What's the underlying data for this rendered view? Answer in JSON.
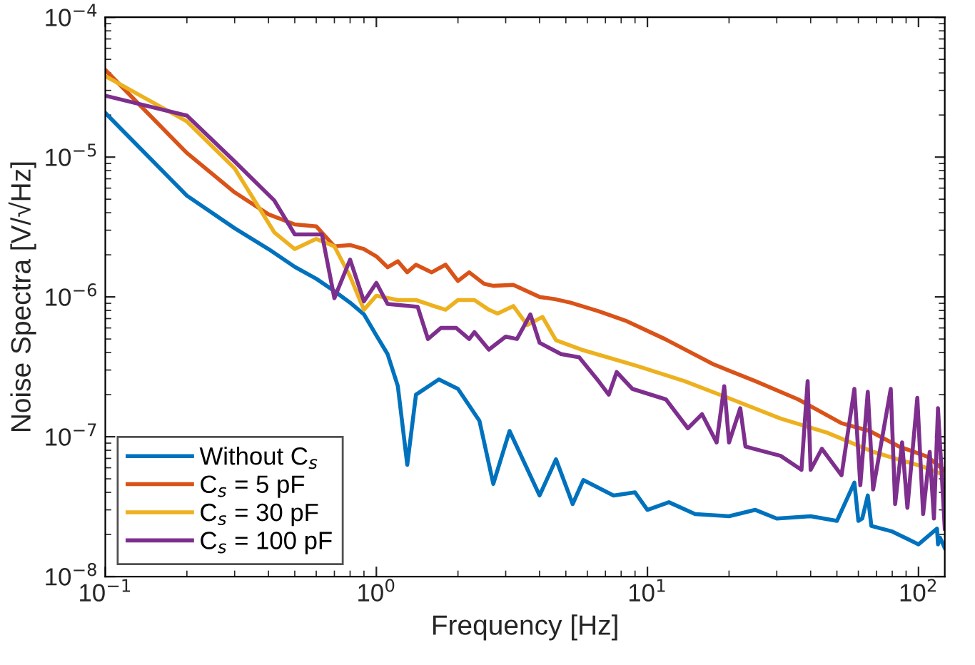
{
  "chart_data": {
    "type": "line",
    "xlabel": "Frequency [Hz]",
    "ylabel": "Noise Spectra [V/√Hz]",
    "log": "xy",
    "grid": false,
    "legend": "bottom left",
    "marker": "none",
    "line_style": "solid",
    "xlim": [
      0.1,
      125
    ],
    "ylim": [
      1e-08,
      0.0001
    ],
    "xticks": [
      {
        "value": 0.1,
        "label": "10$^{−1}$"
      },
      {
        "value": 1,
        "label": "10$^{0}$"
      },
      {
        "value": 10,
        "label": "10$^{1}$"
      },
      {
        "value": 100,
        "label": "10$^{2}$"
      }
    ],
    "yticks": [
      {
        "value": 1e-08,
        "label": "10$^{−8}$"
      },
      {
        "value": 1e-07,
        "label": "10$^{−7}$"
      },
      {
        "value": 1e-06,
        "label": "10$^{−6}$"
      },
      {
        "value": 1e-05,
        "label": "10$^{−5}$"
      },
      {
        "value": 0.0001,
        "label": "10$^{−4}$"
      }
    ],
    "series": [
      {
        "name": "Without C$_{s}$",
        "color": "#0072bd",
        "x": [
          0.1,
          0.2,
          0.3,
          0.4,
          0.5,
          0.6,
          0.7,
          0.8,
          0.9,
          1.0,
          1.1,
          1.2,
          1.3,
          1.4,
          1.7,
          2.0,
          2.4,
          2.7,
          3.1,
          4.0,
          4.6,
          5.3,
          5.8,
          7.5,
          9,
          10,
          12,
          15,
          20,
          25,
          30,
          40,
          50,
          58,
          60,
          62,
          65,
          67,
          80,
          100,
          117,
          118,
          120,
          125
        ],
        "values": [
          2.07e-05,
          5.3e-06,
          3.1e-06,
          2.2e-06,
          1.64e-06,
          1.35e-06,
          1.1e-06,
          9.1e-07,
          7.5e-07,
          5.3e-07,
          3.9e-07,
          2.3e-07,
          6.3e-08,
          2e-07,
          2.57e-07,
          2.2e-07,
          1.3e-07,
          4.6e-08,
          1.1e-07,
          3.8e-08,
          6.9e-08,
          3.3e-08,
          4.9e-08,
          3.8e-08,
          4e-08,
          3e-08,
          3.4e-08,
          2.8e-08,
          2.7e-08,
          3e-08,
          2.6e-08,
          2.7e-08,
          2.5e-08,
          4.7e-08,
          2.5e-08,
          2.6e-08,
          3.8e-08,
          2.3e-08,
          2.1e-08,
          1.7e-08,
          2.2e-08,
          1.7e-08,
          1.9e-08,
          1.6e-08
        ]
      },
      {
        "name": "C$_{s}$ = 5 pF",
        "color": "#d95319",
        "x": [
          0.1,
          0.2,
          0.3,
          0.4,
          0.5,
          0.6,
          0.7,
          0.8,
          0.9,
          1.0,
          1.1,
          1.2,
          1.3,
          1.4,
          1.6,
          1.8,
          2.0,
          2.2,
          2.5,
          2.7,
          3.2,
          4.0,
          4.6,
          5.2,
          6.6,
          8.4,
          11.6,
          17.5,
          25,
          36,
          52,
          66,
          85,
          108,
          125
        ],
        "values": [
          4.2e-05,
          1.07e-05,
          5.6e-06,
          3.9e-06,
          3.3e-06,
          3.2e-06,
          2.3e-06,
          2.35e-06,
          2.2e-06,
          1.95e-06,
          1.63e-06,
          1.8e-06,
          1.5e-06,
          1.7e-06,
          1.5e-06,
          1.7e-06,
          1.3e-06,
          1.5e-06,
          1.24e-06,
          1.2e-06,
          1.22e-06,
          1e-06,
          9.6e-07,
          9.1e-07,
          7.9e-07,
          6.7e-07,
          5e-07,
          3.3e-07,
          2.5e-07,
          1.85e-07,
          1.25e-07,
          1.1e-07,
          8.5e-08,
          7.2e-08,
          5.7e-08
        ]
      },
      {
        "name": "C$_{s}$ = 30 pF",
        "color": "#edb120",
        "x": [
          0.1,
          0.2,
          0.3,
          0.42,
          0.5,
          0.6,
          0.7,
          0.8,
          0.9,
          1.0,
          1.2,
          1.4,
          1.6,
          1.8,
          2.0,
          2.3,
          2.6,
          2.8,
          3.2,
          3.6,
          4.1,
          4.6,
          5.7,
          9.2,
          13.7,
          20.5,
          31,
          46,
          68,
          104,
          125
        ],
        "values": [
          3.8e-05,
          1.8e-05,
          8.3e-06,
          2.9e-06,
          2.2e-06,
          2.6e-06,
          2.3e-06,
          1.4e-06,
          8.1e-07,
          1.02e-06,
          9.5e-07,
          9.5e-07,
          8.7e-07,
          8.1e-07,
          9.5e-07,
          9.5e-07,
          8.1e-07,
          7.6e-07,
          8.6e-07,
          6.3e-07,
          7.2e-07,
          4.9e-07,
          4.2e-07,
          3.2e-07,
          2.5e-07,
          1.85e-07,
          1.35e-07,
          1.07e-07,
          7.8e-08,
          6.1e-08,
          5.3e-08
        ]
      },
      {
        "name": "C$_{s}$ = 100 pF",
        "color": "#7e2f8e",
        "x": [
          0.1,
          0.2,
          0.3,
          0.42,
          0.5,
          0.63,
          0.7,
          0.8,
          0.9,
          1.0,
          1.1,
          1.42,
          1.55,
          1.73,
          1.97,
          2.2,
          2.3,
          2.6,
          3.0,
          3.3,
          3.7,
          4.0,
          4.8,
          5.6,
          6.6,
          7.2,
          7.7,
          8.8,
          11.7,
          14.1,
          15.9,
          18,
          19.2,
          20,
          22,
          23,
          31,
          37,
          39,
          40,
          44,
          52,
          58,
          61,
          65,
          68,
          79,
          82,
          87,
          91,
          99,
          104,
          110,
          114,
          118,
          125
        ],
        "values": [
          2.75e-05,
          1.98e-05,
          9.3e-06,
          4.9e-06,
          2.8e-06,
          2.8e-06,
          9.8e-07,
          1.85e-06,
          9.3e-07,
          1.26e-06,
          8.9e-07,
          8.5e-07,
          5e-07,
          6e-07,
          6e-07,
          5e-07,
          5.6e-07,
          4.2e-07,
          5.2e-07,
          5e-07,
          7.5e-07,
          4.7e-07,
          3.9e-07,
          3.7e-07,
          2.5e-07,
          2e-07,
          2.9e-07,
          2.2e-07,
          1.85e-07,
          1.15e-07,
          1.45e-07,
          9.1e-08,
          2.3e-07,
          9.1e-08,
          1.6e-07,
          8.5e-08,
          7.3e-08,
          5.8e-08,
          2.5e-07,
          5.8e-08,
          8.2e-08,
          5.3e-08,
          2.2e-07,
          4.5e-08,
          2.1e-07,
          4.2e-08,
          2.2e-07,
          3.3e-08,
          9.1e-08,
          3.1e-08,
          1.9e-07,
          2.8e-08,
          7.8e-08,
          2.6e-08,
          1.6e-07,
          2.2e-08
        ]
      }
    ]
  }
}
